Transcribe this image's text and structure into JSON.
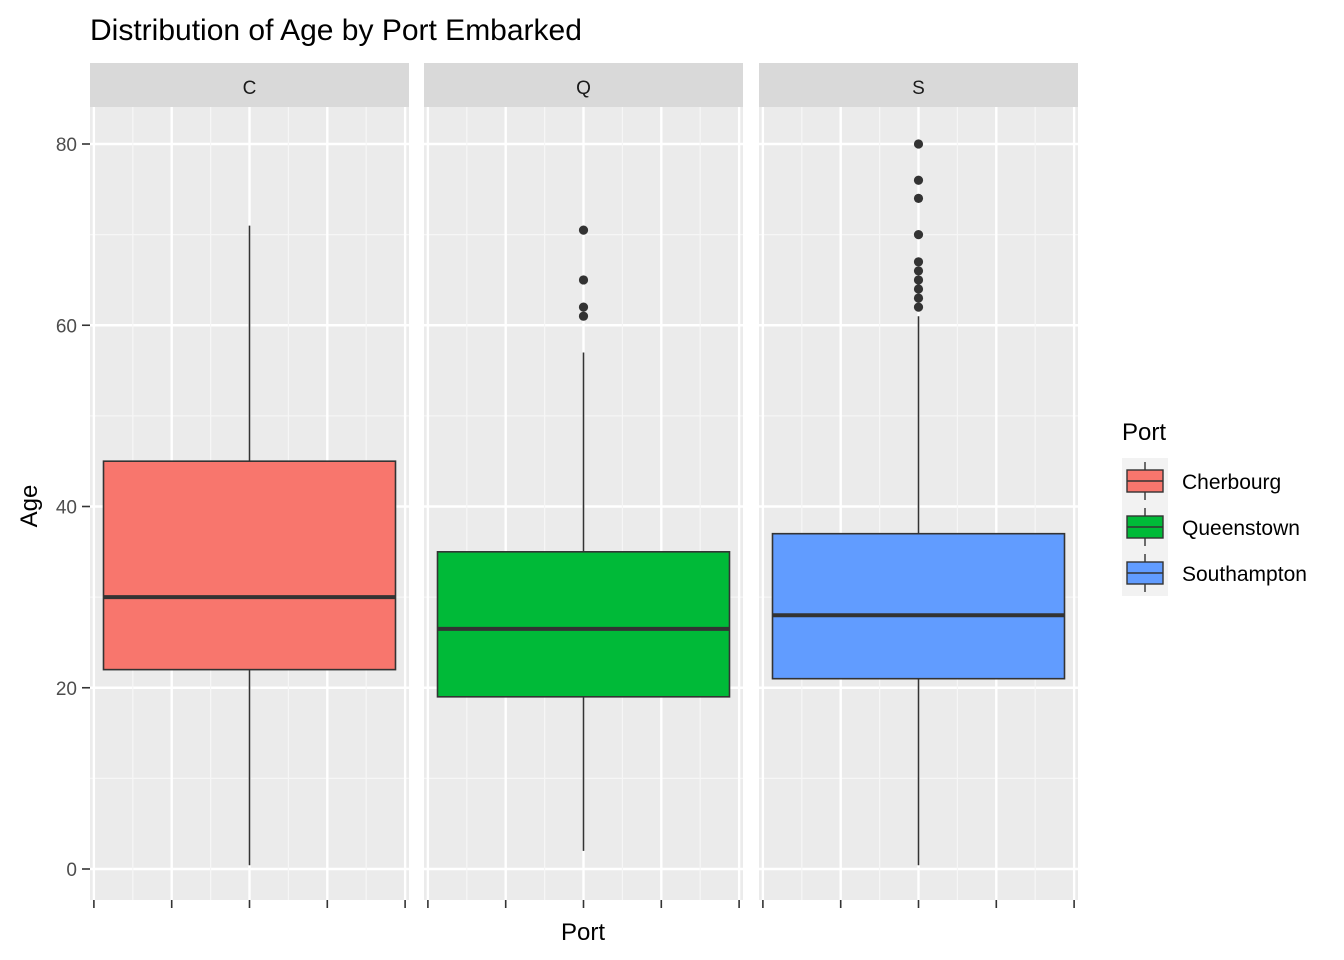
{
  "chart_data": {
    "type": "boxplot",
    "title": "Distribution of Age by Port Embarked",
    "xlabel": "Port",
    "ylabel": "Age",
    "ylim": [
      -3.3,
      85.2
    ],
    "yticks": [
      0,
      20,
      40,
      60,
      80
    ],
    "grid": true,
    "facets": [
      {
        "label": "C",
        "port": "Cherbourg",
        "color": "#F8766D",
        "box": {
          "min": 0.42,
          "q1": 22,
          "median": 30,
          "q3": 45,
          "max": 71
        },
        "outliers": []
      },
      {
        "label": "Q",
        "port": "Queenstown",
        "color": "#00BA38",
        "box": {
          "min": 2,
          "q1": 19,
          "median": 26.5,
          "q3": 35,
          "max": 57
        },
        "outliers": [
          61,
          62,
          65,
          70.5
        ]
      },
      {
        "label": "S",
        "port": "Southampton",
        "color": "#619CFF",
        "box": {
          "min": 0.42,
          "q1": 21,
          "median": 28,
          "q3": 37,
          "max": 61
        },
        "outliers": [
          62,
          63,
          64,
          65,
          66,
          67,
          70,
          74,
          76,
          80
        ]
      }
    ],
    "legend": {
      "title": "Port",
      "position": "right",
      "entries": [
        {
          "label": "Cherbourg",
          "color": "#F8766D"
        },
        {
          "label": "Queenstown",
          "color": "#00BA38"
        },
        {
          "label": "Southampton",
          "color": "#619CFF"
        }
      ]
    }
  }
}
